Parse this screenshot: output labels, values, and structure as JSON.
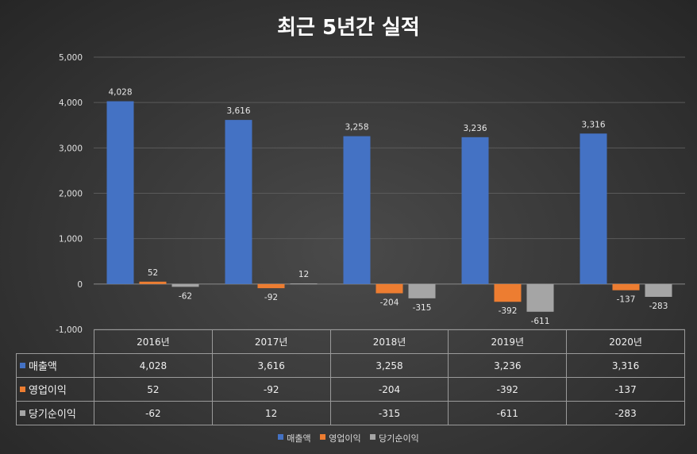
{
  "chart_data": {
    "type": "bar",
    "title": "최근 5년간 실적",
    "categories": [
      "2016년",
      "2017년",
      "2018년",
      "2019년",
      "2020년"
    ],
    "series": [
      {
        "name": "매출액",
        "color": "#4472C4",
        "values": [
          4028,
          3616,
          3258,
          3236,
          3316
        ]
      },
      {
        "name": "영업이익",
        "color": "#ED7D31",
        "values": [
          52,
          -92,
          -204,
          -392,
          -137
        ]
      },
      {
        "name": "당기순이익",
        "color": "#A5A5A5",
        "values": [
          -62,
          12,
          -315,
          -611,
          -283
        ]
      }
    ],
    "ylim": [
      -1000,
      5000
    ],
    "yticks": [
      5000,
      4000,
      3000,
      2000,
      1000,
      0,
      -1000
    ],
    "ytick_labels": [
      "5,000",
      "4,000",
      "3,000",
      "2,000",
      "1,000",
      "0",
      "-1,000"
    ],
    "data_labels": [
      [
        "4,028",
        "3,616",
        "3,258",
        "3,236",
        "3,316"
      ],
      [
        "52",
        "-92",
        "-204",
        "-392",
        "-137"
      ],
      [
        "-62",
        "12",
        "-315",
        "-611",
        "-283"
      ]
    ],
    "legend_position": "bottom",
    "data_table": true
  },
  "table": {
    "headers": [
      "2016년",
      "2017년",
      "2018년",
      "2019년",
      "2020년"
    ],
    "rows": [
      {
        "label": "매출액",
        "cells": [
          "4,028",
          "3,616",
          "3,258",
          "3,236",
          "3,316"
        ]
      },
      {
        "label": "영업이익",
        "cells": [
          "52",
          "-92",
          "-204",
          "-392",
          "-137"
        ]
      },
      {
        "label": "당기순이익",
        "cells": [
          "-62",
          "12",
          "-315",
          "-611",
          "-283"
        ]
      }
    ]
  }
}
